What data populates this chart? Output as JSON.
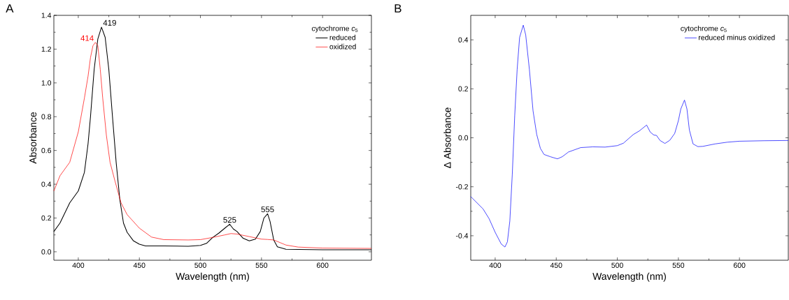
{
  "chart_data": [
    {
      "type": "line",
      "xlabel": "Wavelength (nm)",
      "ylabel": "Absorbance",
      "legend_title": "cytochrome *c*$_{5}$",
      "legend": "top right",
      "xlim": [
        380,
        640
      ],
      "ylim": [
        -0.05,
        1.4
      ],
      "xticks": [
        400,
        450,
        500,
        550,
        600
      ],
      "yticks": [
        {
          "value": 0,
          "label": "0.0"
        },
        {
          "value": 0.2,
          "label": "0.2"
        },
        {
          "value": 0.4,
          "label": "0.4"
        },
        {
          "value": 0.6,
          "label": "0.6"
        },
        {
          "value": 0.8,
          "label": "0.8"
        },
        {
          "value": 1.0,
          "label": "1.0"
        },
        {
          "value": 1.2,
          "label": "1.2"
        },
        {
          "value": 1.4,
          "label": "1.4"
        }
      ],
      "annotations": [
        "A",
        {
          "text": "419",
          "x": 419,
          "y": 1.33
        },
        {
          "text": "414",
          "x": 414,
          "y": 1.24
        },
        {
          "text": "525",
          "x": 524,
          "y": 0.163
        },
        {
          "text": "555",
          "x": 555,
          "y": 0.225
        }
      ],
      "series": [
        {
          "name": "reduced",
          "color": "#000000",
          "x": [
            380,
            385,
            393,
            400,
            405,
            408,
            410,
            413,
            416,
            419,
            422,
            425,
            428,
            431,
            434,
            437,
            440,
            445,
            450,
            455,
            470,
            490,
            500,
            505,
            510,
            515,
            520,
            524,
            527,
            530,
            535,
            540,
            545,
            549,
            552,
            555,
            557,
            560,
            563,
            570,
            600,
            640
          ],
          "values": [
            0.12,
            0.17,
            0.29,
            0.36,
            0.47,
            0.64,
            0.8,
            1.08,
            1.26,
            1.33,
            1.27,
            1.08,
            0.8,
            0.53,
            0.31,
            0.17,
            0.115,
            0.066,
            0.045,
            0.035,
            0.035,
            0.033,
            0.038,
            0.05,
            0.085,
            0.11,
            0.14,
            0.163,
            0.135,
            0.12,
            0.08,
            0.065,
            0.075,
            0.12,
            0.2,
            0.225,
            0.18,
            0.07,
            0.03,
            0.015,
            0.012,
            0.012
          ]
        },
        {
          "name": "oxidized",
          "color": "#ff0000",
          "x": [
            380,
            385,
            393,
            400,
            405,
            408,
            410,
            412,
            414,
            416,
            418,
            420,
            423,
            426,
            430,
            435,
            440,
            450,
            460,
            470,
            490,
            500,
            510,
            520,
            525,
            530,
            540,
            550,
            555,
            560,
            565,
            570,
            580,
            600,
            640
          ],
          "values": [
            0.36,
            0.45,
            0.53,
            0.71,
            0.91,
            1.04,
            1.15,
            1.22,
            1.24,
            1.22,
            1.08,
            0.91,
            0.69,
            0.53,
            0.42,
            0.29,
            0.22,
            0.14,
            0.087,
            0.072,
            0.07,
            0.072,
            0.085,
            0.1,
            0.108,
            0.105,
            0.09,
            0.075,
            0.073,
            0.07,
            0.055,
            0.04,
            0.028,
            0.022,
            0.02
          ]
        }
      ]
    },
    {
      "type": "line",
      "xlabel": "Wavelength (nm)",
      "ylabel": "Δ Absorbance",
      "legend_title": "cytochrome *c*$_{5}$",
      "legend": "top right",
      "xlim": [
        380,
        640
      ],
      "ylim": [
        -0.5,
        0.5
      ],
      "xticks": [
        400,
        450,
        500,
        550,
        600
      ],
      "yticks": [
        {
          "value": -0.4,
          "label": "-0.4"
        },
        {
          "value": -0.2,
          "label": "-0.2"
        },
        {
          "value": 0,
          "label": "0.0"
        },
        {
          "value": 0.2,
          "label": "0.2"
        },
        {
          "value": 0.4,
          "label": "0.4"
        }
      ],
      "annotations": [
        "B"
      ],
      "series": [
        {
          "name": "reduced minus oxidized",
          "color": "#0000ff",
          "x": [
            380,
            390,
            395,
            400,
            405,
            408,
            410,
            412,
            414,
            416,
            418,
            420,
            423,
            425,
            428,
            431,
            434,
            437,
            440,
            445,
            451,
            455,
            460,
            470,
            480,
            490,
            500,
            505,
            513,
            518,
            524,
            527,
            530,
            532,
            535,
            539,
            543,
            547,
            550,
            552,
            555,
            557,
            559,
            562,
            566,
            570,
            580,
            590,
            600,
            620,
            640
          ],
          "values": [
            -0.24,
            -0.29,
            -0.33,
            -0.386,
            -0.434,
            -0.446,
            -0.425,
            -0.34,
            -0.15,
            0.09,
            0.28,
            0.41,
            0.46,
            0.42,
            0.28,
            0.11,
            0.014,
            -0.043,
            -0.068,
            -0.077,
            -0.086,
            -0.077,
            -0.058,
            -0.04,
            -0.037,
            -0.038,
            -0.032,
            -0.022,
            0.013,
            0.028,
            0.052,
            0.023,
            0.011,
            0.01,
            -0.011,
            -0.023,
            -0.01,
            0.018,
            0.07,
            0.118,
            0.154,
            0.118,
            0.032,
            -0.025,
            -0.036,
            -0.035,
            -0.025,
            -0.018,
            -0.014,
            -0.012,
            -0.011
          ]
        }
      ]
    }
  ]
}
